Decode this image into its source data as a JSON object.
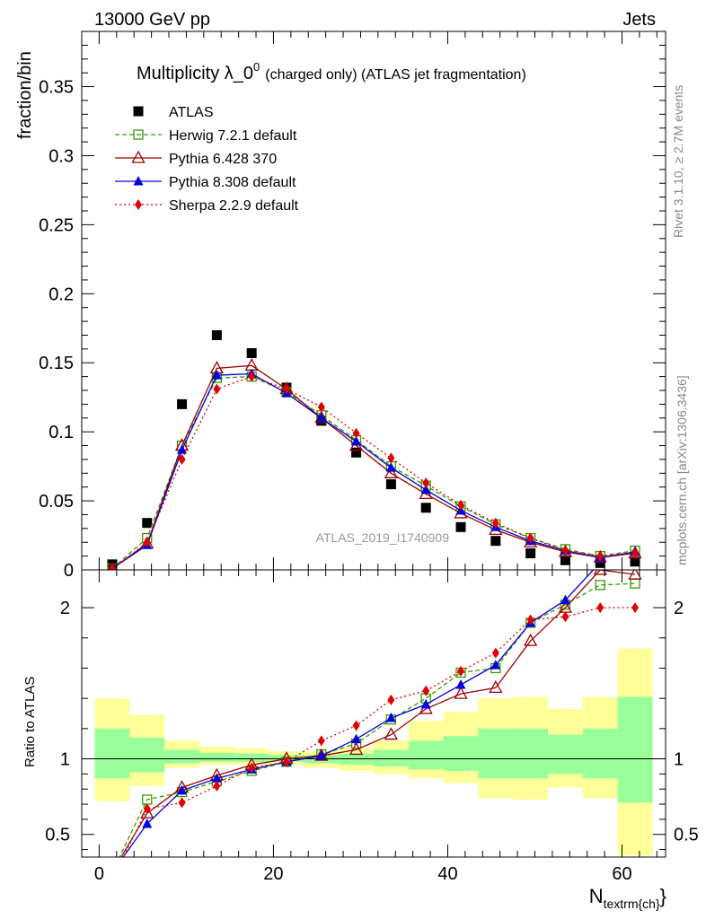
{
  "header": {
    "left": "13000 GeV pp",
    "right": "Jets"
  },
  "side_labels": {
    "rivet": "Rivet 3.1.10, ≥ 2.7M events",
    "mcplots": "mcplots.cern.ch [arXiv:1306.3436]"
  },
  "chart_data": [
    {
      "type": "scatter",
      "panel": "main",
      "title": "Multiplicity λ_0",
      "title_sup": "0",
      "title_suffix": "(charged only) (ATLAS jet fragmentation)",
      "ylabel": "fraction/bin",
      "watermark": "ATLAS_2019_I1740909",
      "xlim": [
        -2,
        65
      ],
      "ylim": [
        0,
        0.39
      ],
      "y_ticks": [
        0,
        0.05,
        0.1,
        0.15,
        0.2,
        0.25,
        0.3,
        0.35
      ],
      "y_tick_labels": [
        "0",
        "0.05",
        "0.1",
        "0.15",
        "0.2",
        "0.25",
        "0.3",
        "0.35"
      ],
      "legend_position": "top-left",
      "x": [
        1.5,
        5.5,
        9.5,
        13.5,
        17.5,
        21.5,
        25.5,
        29.5,
        33.5,
        37.5,
        41.5,
        45.5,
        49.5,
        53.5,
        57.5,
        61.5
      ],
      "series": [
        {
          "name": "ATLAS",
          "color": "#000000",
          "marker": "square",
          "line": "none",
          "values": [
            0.004,
            0.034,
            0.12,
            0.17,
            0.157,
            0.132,
            0.108,
            0.085,
            0.062,
            0.045,
            0.031,
            0.021,
            0.012,
            0.007,
            0.005,
            0.006
          ]
        },
        {
          "name": "Herwig 7.2.1 default",
          "color": "#3a9a00",
          "marker": "open-square",
          "line": "dashed",
          "values": [
            0.001,
            0.023,
            0.09,
            0.139,
            0.14,
            0.129,
            0.112,
            0.094,
            0.075,
            0.061,
            0.046,
            0.033,
            0.023,
            0.015,
            0.01,
            0.014
          ]
        },
        {
          "name": "Pythia 6.428 370",
          "color": "#a00000",
          "marker": "open-triangle",
          "line": "solid",
          "values": [
            0.001,
            0.019,
            0.09,
            0.146,
            0.148,
            0.131,
            0.11,
            0.09,
            0.07,
            0.055,
            0.041,
            0.029,
            0.02,
            0.013,
            0.009,
            0.012
          ]
        },
        {
          "name": "Pythia 8.308 default",
          "color": "#0000e0",
          "marker": "triangle",
          "line": "solid",
          "values": [
            0.001,
            0.018,
            0.087,
            0.141,
            0.142,
            0.128,
            0.11,
            0.093,
            0.074,
            0.058,
            0.043,
            0.031,
            0.021,
            0.014,
            0.009,
            0.013
          ]
        },
        {
          "name": "Sherpa 2.2.9 default",
          "color": "#e00000",
          "marker": "diamond",
          "line": "dotted",
          "values": [
            0.0005,
            0.02,
            0.08,
            0.131,
            0.14,
            0.131,
            0.118,
            0.099,
            0.081,
            0.063,
            0.047,
            0.034,
            0.023,
            0.014,
            0.01,
            0.012
          ]
        }
      ]
    },
    {
      "type": "line",
      "panel": "ratio",
      "ylabel": "Ratio to ATLAS",
      "xlabel": "N",
      "xlabel_sub": "textrm{ch}",
      "xlabel_suffix": "}",
      "xlim": [
        -2,
        65
      ],
      "ylim": [
        0.35,
        2.25
      ],
      "x_ticks": [
        0,
        20,
        40,
        60
      ],
      "x_tick_labels": [
        "0",
        "20",
        "40",
        "60"
      ],
      "y_ticks": [
        0.5,
        1,
        2
      ],
      "y_tick_labels": [
        "0.5",
        "1",
        "2"
      ],
      "bin_edges": [
        -0.5,
        3.5,
        7.5,
        11.5,
        15.5,
        19.5,
        23.5,
        27.5,
        31.5,
        35.5,
        39.5,
        43.5,
        47.5,
        51.5,
        55.5,
        59.5,
        63.5
      ],
      "band_yellow": [
        [
          0.72,
          1.4
        ],
        [
          0.82,
          1.29
        ],
        [
          0.94,
          1.12
        ],
        [
          0.96,
          1.08
        ],
        [
          0.96,
          1.07
        ],
        [
          0.96,
          1.05
        ],
        [
          0.94,
          1.05
        ],
        [
          0.92,
          1.07
        ],
        [
          0.9,
          1.12
        ],
        [
          0.87,
          1.25
        ],
        [
          0.84,
          1.31
        ],
        [
          0.74,
          1.4
        ],
        [
          0.73,
          1.41
        ],
        [
          0.81,
          1.33
        ],
        [
          0.74,
          1.41
        ],
        [
          0.36,
          1.73
        ]
      ],
      "band_green": [
        [
          0.87,
          1.2
        ],
        [
          0.91,
          1.14
        ],
        [
          0.97,
          1.06
        ],
        [
          0.98,
          1.04
        ],
        [
          0.98,
          1.035
        ],
        [
          0.98,
          1.025
        ],
        [
          0.97,
          1.025
        ],
        [
          0.96,
          1.035
        ],
        [
          0.95,
          1.06
        ],
        [
          0.93,
          1.12
        ],
        [
          0.92,
          1.15
        ],
        [
          0.87,
          1.2
        ],
        [
          0.87,
          1.2
        ],
        [
          0.9,
          1.16
        ],
        [
          0.87,
          1.2
        ],
        [
          0.71,
          1.41
        ]
      ],
      "reference": 1,
      "x": [
        1.5,
        5.5,
        9.5,
        13.5,
        17.5,
        21.5,
        25.5,
        29.5,
        33.5,
        37.5,
        41.5,
        45.5,
        49.5,
        53.5,
        57.5,
        61.5
      ],
      "series": [
        {
          "name": "Herwig 7.2.1 default",
          "color": "#3a9a00",
          "marker": "open-square",
          "line": "dashed",
          "values": [
            0.25,
            0.73,
            0.78,
            0.85,
            0.92,
            0.98,
            1.03,
            1.1,
            1.26,
            1.4,
            1.57,
            1.6,
            1.9,
            2.02,
            2.15,
            2.16
          ]
        },
        {
          "name": "Pythia 6.428 370",
          "color": "#a00000",
          "marker": "open-triangle",
          "line": "solid",
          "values": [
            0.25,
            0.64,
            0.81,
            0.89,
            0.96,
            1.0,
            1.02,
            1.06,
            1.16,
            1.33,
            1.43,
            1.47,
            1.78,
            2.0,
            2.25,
            2.22
          ]
        },
        {
          "name": "Pythia 8.308 default",
          "color": "#0000e0",
          "marker": "triangle",
          "line": "solid",
          "values": [
            0.25,
            0.57,
            0.79,
            0.87,
            0.93,
            0.98,
            1.02,
            1.13,
            1.27,
            1.36,
            1.49,
            1.62,
            1.9,
            2.05,
            2.3,
            2.32
          ]
        },
        {
          "name": "Sherpa 2.2.9 default",
          "color": "#e00000",
          "marker": "diamond",
          "line": "dotted",
          "values": [
            0.2,
            0.67,
            0.71,
            0.82,
            0.94,
            0.98,
            1.12,
            1.22,
            1.39,
            1.45,
            1.58,
            1.7,
            1.92,
            1.94,
            2.0,
            2.0
          ]
        }
      ]
    }
  ]
}
